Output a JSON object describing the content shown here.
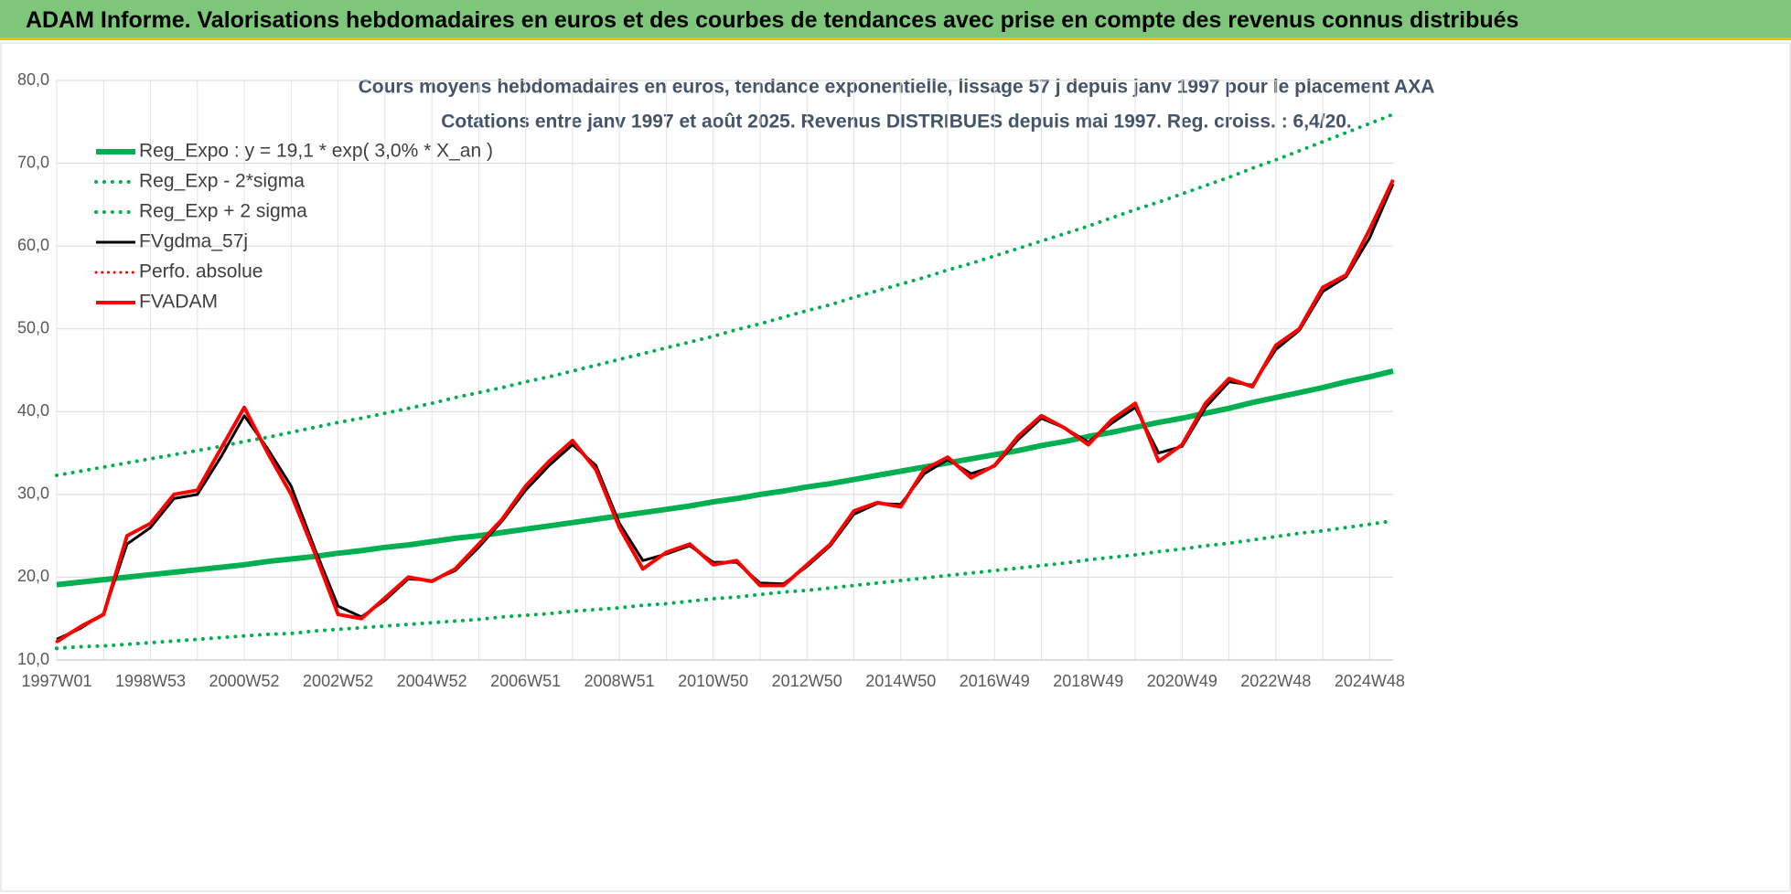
{
  "header": {
    "title": "ADAM Informe. Valorisations hebdomadaires en euros et des courbes de tendances avec prise en compte des revenus connus distribués"
  },
  "chart_data": {
    "type": "line",
    "title": "Cours moyens hebdomadaires en euros, tendance exponentielle, lissage 57 j depuis janv 1997 pour le placement AXA",
    "subtitle": "Cotations entre janv 1997 et août 2025.  Revenus DISTRIBUES depuis mai 1997. Reg. croiss. : 6,4/20.",
    "categories": [
      "1997W01",
      null,
      null,
      null,
      "1998W53",
      null,
      null,
      null,
      "2000W52",
      null,
      null,
      null,
      "2002W52",
      null,
      null,
      null,
      "2004W52",
      null,
      null,
      null,
      "2006W51",
      null,
      null,
      null,
      "2008W51",
      null,
      null,
      null,
      "2010W50",
      null,
      null,
      null,
      "2012W50",
      null,
      null,
      null,
      "2014W50",
      null,
      null,
      null,
      "2016W49",
      null,
      null,
      null,
      "2018W49",
      null,
      null,
      null,
      "2020W49",
      null,
      null,
      null,
      "2022W48",
      null,
      null,
      null,
      "2024W48",
      null
    ],
    "ylim": [
      10,
      80
    ],
    "yticks": [
      {
        "value": 10,
        "label": "10,0"
      },
      {
        "value": 20,
        "label": "20,0"
      },
      {
        "value": 30,
        "label": "30,0"
      },
      {
        "value": 40,
        "label": "40,0"
      },
      {
        "value": 50,
        "label": "50,0"
      },
      {
        "value": 60,
        "label": "60,0"
      },
      {
        "value": 70,
        "label": "70,0"
      },
      {
        "value": 80,
        "label": "80,0"
      }
    ],
    "grid": true,
    "series": [
      {
        "name": "Reg_Expo : y = 19,1 * exp( 3,0% *  X_an )",
        "color": "#00b050",
        "style": "solid",
        "width": 6,
        "values": [
          19.1,
          19.4,
          19.7,
          20.0,
          20.3,
          20.6,
          20.9,
          21.2,
          21.5,
          21.9,
          22.2,
          22.5,
          22.9,
          23.2,
          23.6,
          23.9,
          24.3,
          24.7,
          25.0,
          25.4,
          25.8,
          26.2,
          26.6,
          27.0,
          27.4,
          27.8,
          28.2,
          28.6,
          29.1,
          29.5,
          30.0,
          30.4,
          30.9,
          31.3,
          31.8,
          32.3,
          32.8,
          33.3,
          33.8,
          34.3,
          34.8,
          35.3,
          35.9,
          36.4,
          37.0,
          37.5,
          38.1,
          38.7,
          39.2,
          39.8,
          40.4,
          41.1,
          41.7,
          42.3,
          42.9,
          43.6,
          44.2,
          44.9
        ]
      },
      {
        "name": "Reg_Exp - 2*sigma",
        "color": "#00b050",
        "style": "dotted",
        "width": 4,
        "values": [
          11.4,
          11.6,
          11.7,
          11.9,
          12.1,
          12.3,
          12.5,
          12.7,
          12.9,
          13.1,
          13.2,
          13.5,
          13.7,
          13.9,
          14.1,
          14.3,
          14.5,
          14.7,
          14.9,
          15.2,
          15.4,
          15.6,
          15.9,
          16.1,
          16.3,
          16.6,
          16.8,
          17.1,
          17.4,
          17.6,
          17.9,
          18.2,
          18.4,
          18.7,
          19.0,
          19.3,
          19.6,
          19.9,
          20.2,
          20.5,
          20.8,
          21.1,
          21.4,
          21.7,
          22.1,
          22.4,
          22.7,
          23.1,
          23.4,
          23.8,
          24.1,
          24.5,
          24.9,
          25.3,
          25.6,
          26.0,
          26.4,
          26.8
        ]
      },
      {
        "name": "Reg_Exp + 2 sigma",
        "color": "#00b050",
        "style": "dotted",
        "width": 4,
        "values": [
          32.3,
          32.8,
          33.3,
          33.8,
          34.3,
          34.8,
          35.3,
          35.8,
          36.4,
          36.9,
          37.5,
          38.1,
          38.7,
          39.2,
          39.8,
          40.4,
          41.0,
          41.7,
          42.3,
          42.9,
          43.6,
          44.2,
          44.9,
          45.6,
          46.3,
          47.0,
          47.7,
          48.4,
          49.1,
          49.9,
          50.6,
          51.4,
          52.2,
          52.9,
          53.8,
          54.6,
          55.4,
          56.2,
          57.1,
          57.9,
          58.8,
          59.7,
          60.6,
          61.5,
          62.4,
          63.4,
          64.4,
          65.3,
          66.3,
          67.3,
          68.3,
          69.4,
          70.4,
          71.5,
          72.6,
          73.7,
          74.8,
          75.9
        ]
      },
      {
        "name": "FVgdma_57j",
        "color": "#000000",
        "style": "solid",
        "width": 3,
        "values": [
          12.5,
          13.8,
          15.6,
          24.0,
          26.0,
          29.5,
          30.0,
          34.5,
          39.5,
          35.5,
          31.0,
          23.5,
          16.5,
          15.2,
          17.2,
          19.8,
          19.6,
          20.8,
          23.6,
          26.8,
          30.5,
          33.5,
          36.0,
          33.5,
          26.5,
          22.0,
          22.8,
          23.8,
          21.8,
          21.8,
          19.3,
          19.2,
          21.3,
          23.8,
          27.6,
          28.9,
          28.8,
          32.5,
          34.2,
          32.5,
          33.4,
          36.6,
          39.2,
          38.0,
          36.3,
          38.6,
          40.5,
          35.0,
          35.8,
          40.5,
          43.6,
          43.2,
          47.5,
          49.8,
          54.5,
          56.3,
          61.0,
          67.5
        ]
      },
      {
        "name": "Perfo. absolue",
        "color": "#ff0000",
        "style": "dotted",
        "width": 3,
        "values": [
          12.2,
          14.0,
          15.5,
          25.0,
          26.5,
          30.0,
          30.5,
          35.5,
          40.5,
          35.0,
          30.0,
          23.0,
          15.5,
          15.0,
          17.5,
          20.0,
          19.5,
          21.0,
          24.0,
          27.0,
          31.0,
          34.0,
          36.5,
          33.0,
          26.0,
          21.0,
          23.0,
          24.0,
          21.5,
          22.0,
          19.0,
          19.0,
          21.5,
          24.0,
          28.0,
          29.0,
          28.5,
          33.0,
          34.5,
          32.0,
          33.5,
          37.0,
          39.5,
          38.0,
          36.0,
          39.0,
          41.0,
          34.0,
          36.0,
          41.0,
          44.0,
          43.0,
          48.0,
          50.0,
          55.0,
          56.5,
          62.0,
          68.0
        ]
      },
      {
        "name": "FVADAM",
        "color": "#ff0000",
        "style": "solid",
        "width": 4,
        "values": [
          12.2,
          14.0,
          15.5,
          25.0,
          26.5,
          30.0,
          30.5,
          35.5,
          40.5,
          35.0,
          30.0,
          23.0,
          15.5,
          15.0,
          17.5,
          20.0,
          19.5,
          21.0,
          24.0,
          27.0,
          31.0,
          34.0,
          36.5,
          33.0,
          26.0,
          21.0,
          23.0,
          24.0,
          21.5,
          22.0,
          19.0,
          19.0,
          21.5,
          24.0,
          28.0,
          29.0,
          28.5,
          33.0,
          34.5,
          32.0,
          33.5,
          37.0,
          39.5,
          38.0,
          36.0,
          39.0,
          41.0,
          34.0,
          36.0,
          41.0,
          44.0,
          43.0,
          48.0,
          50.0,
          55.0,
          56.5,
          62.0,
          68.0
        ]
      }
    ]
  }
}
